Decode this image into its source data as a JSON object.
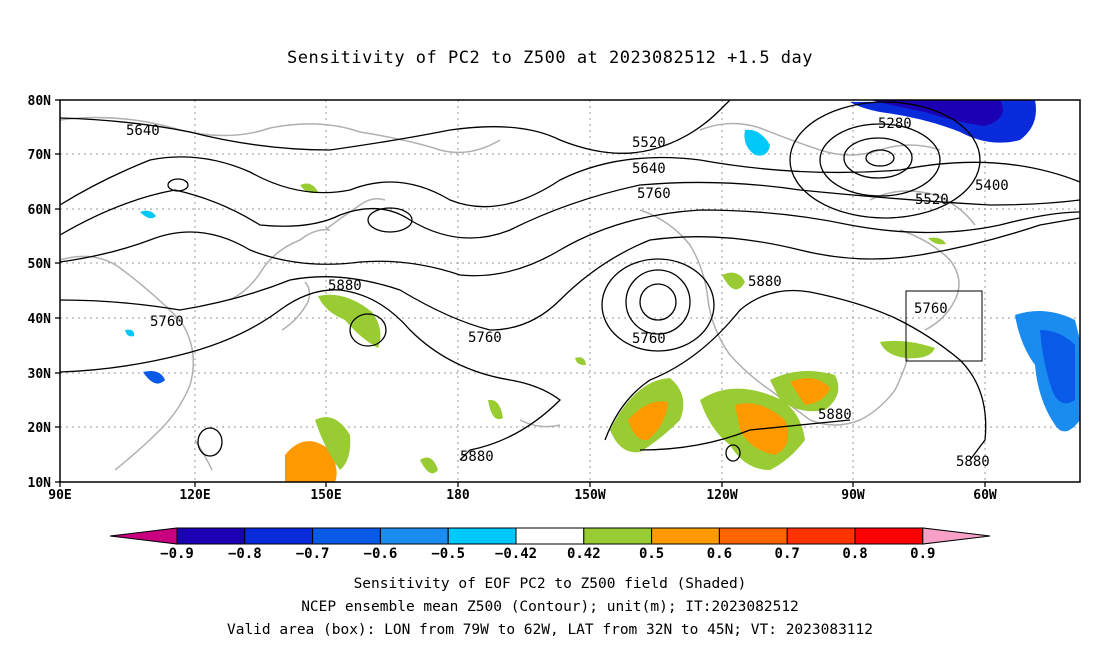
{
  "title": "Sensitivity of PC2 to Z500 at 2023082512 +1.5 day",
  "lat_labels": [
    "80N",
    "70N",
    "60N",
    "50N",
    "40N",
    "30N",
    "20N",
    "10N"
  ],
  "lon_labels": [
    "90E",
    "120E",
    "150E",
    "180",
    "150W",
    "120W",
    "90W",
    "60W"
  ],
  "contour_labels": [
    "5640",
    "5520",
    "5640",
    "5760",
    "5280",
    "5400",
    "5520",
    "5880",
    "5760",
    "5760",
    "5760",
    "5880",
    "5880",
    "5880",
    "5880"
  ],
  "colorbar": {
    "labels": [
      "-0.9",
      "-0.8",
      "-0.7",
      "-0.6",
      "-0.5",
      "-0.42",
      "0.42",
      "0.5",
      "0.6",
      "0.7",
      "0.8",
      "0.9"
    ],
    "colors": [
      "#c8007f",
      "#1c00b4",
      "#0a2bdc",
      "#0a5ae8",
      "#1a8cf0",
      "#00c8f8",
      "#ffffff",
      "#99cc33",
      "#ff9900",
      "#ff6600",
      "#ff3300",
      "#ff0000",
      "#f7a1c8"
    ]
  },
  "valid_box": {
    "lon_w": -79,
    "lon_e": -62,
    "lat_s": 32,
    "lat_n": 45
  },
  "captions": {
    "line1": "Sensitivity of EOF PC2 to Z500 field (Shaded)",
    "line2": "NCEP ensemble mean Z500 (Contour); unit(m); IT:2023082512",
    "line3": "Valid area (box): LON from 79W to 62W, LAT from 32N to 45N; VT: 2023083112"
  }
}
